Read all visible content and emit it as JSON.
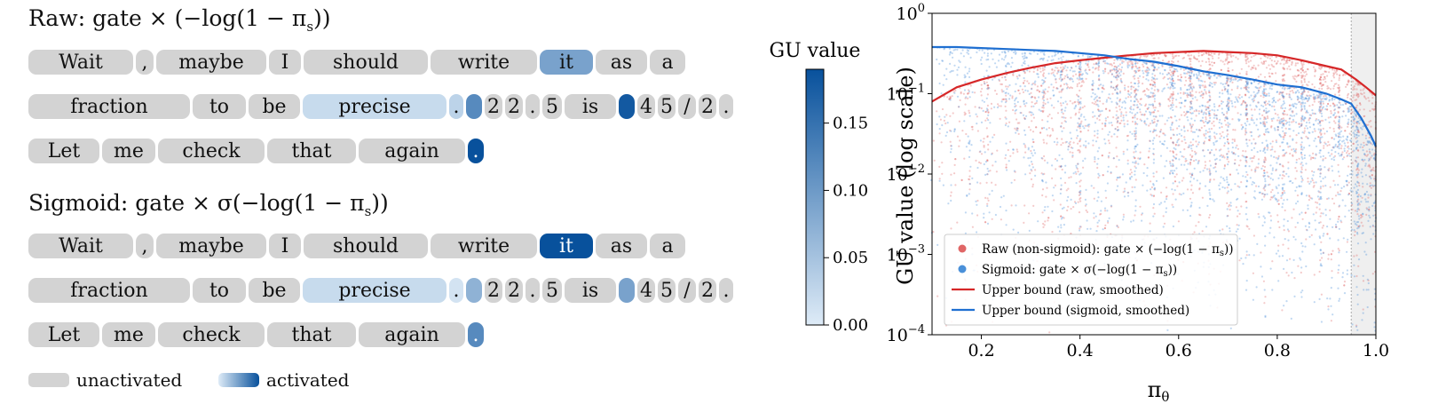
{
  "panels": [
    {
      "title": "Raw:  gate × (−log(1 − π",
      "title_sub": "s",
      "title_end": "))",
      "rows": [
        [
          {
            "t": "Wait",
            "w": 118,
            "v": null
          },
          {
            "t": ",",
            "w": 20,
            "v": null
          },
          {
            "t": "maybe",
            "w": 124,
            "v": null
          },
          {
            "t": "I",
            "w": 36,
            "v": null
          },
          {
            "t": "should",
            "w": 140,
            "v": null
          },
          {
            "t": "write",
            "w": 120,
            "v": null
          },
          {
            "t": "it",
            "w": 60,
            "v": 0.09
          },
          {
            "t": "as",
            "w": 58,
            "v": null
          },
          {
            "t": "a",
            "w": 40,
            "v": null
          }
        ],
        [
          {
            "t": "fraction",
            "w": 182,
            "v": null
          },
          {
            "t": "to",
            "w": 60,
            "v": null
          },
          {
            "t": "be",
            "w": 58,
            "v": null
          },
          {
            "t": "precise",
            "w": 162,
            "v": 0.02
          },
          {
            "t": ".",
            "w": 16,
            "v": 0.03
          },
          {
            "t": "",
            "w": 18,
            "v": 0.12
          },
          {
            "t": "2",
            "w": 20,
            "v": null
          },
          {
            "t": "2",
            "w": 20,
            "v": null
          },
          {
            "t": ".",
            "w": 16,
            "v": null
          },
          {
            "t": "5",
            "w": 22,
            "v": null
          },
          {
            "t": "is",
            "w": 58,
            "v": null
          },
          {
            "t": "",
            "w": 18,
            "v": 0.18
          },
          {
            "t": "4",
            "w": 20,
            "v": null
          },
          {
            "t": "5",
            "w": 20,
            "v": null
          },
          {
            "t": "/",
            "w": 20,
            "v": null
          },
          {
            "t": "2",
            "w": 20,
            "v": null
          },
          {
            "t": ".",
            "w": 16,
            "v": null
          }
        ],
        [
          {
            "t": "Let",
            "w": 80,
            "v": null
          },
          {
            "t": "me",
            "w": 60,
            "v": null
          },
          {
            "t": "check",
            "w": 120,
            "v": null
          },
          {
            "t": "that",
            "w": 100,
            "v": null
          },
          {
            "t": "again",
            "w": 120,
            "v": null
          },
          {
            "t": ".",
            "w": 18,
            "v": 0.19
          }
        ]
      ]
    },
    {
      "title": "Sigmoid:  gate × σ(−log(1 − π",
      "title_sub": "s",
      "title_end": "))",
      "rows": [
        [
          {
            "t": "Wait",
            "w": 118,
            "v": null
          },
          {
            "t": ",",
            "w": 20,
            "v": null
          },
          {
            "t": "maybe",
            "w": 124,
            "v": null
          },
          {
            "t": "I",
            "w": 36,
            "v": null
          },
          {
            "t": "should",
            "w": 140,
            "v": null
          },
          {
            "t": "write",
            "w": 120,
            "v": null
          },
          {
            "t": "it",
            "w": 60,
            "v": 0.19
          },
          {
            "t": "as",
            "w": 58,
            "v": null
          },
          {
            "t": "a",
            "w": 40,
            "v": null
          }
        ],
        [
          {
            "t": "fraction",
            "w": 182,
            "v": null
          },
          {
            "t": "to",
            "w": 60,
            "v": null
          },
          {
            "t": "be",
            "w": 58,
            "v": null
          },
          {
            "t": "precise",
            "w": 162,
            "v": 0.02
          },
          {
            "t": ".",
            "w": 16,
            "v": 0.01
          },
          {
            "t": "",
            "w": 18,
            "v": 0.07
          },
          {
            "t": "2",
            "w": 20,
            "v": null
          },
          {
            "t": "2",
            "w": 20,
            "v": null
          },
          {
            "t": ".",
            "w": 16,
            "v": null
          },
          {
            "t": "5",
            "w": 22,
            "v": null
          },
          {
            "t": "is",
            "w": 58,
            "v": null
          },
          {
            "t": "",
            "w": 18,
            "v": 0.09
          },
          {
            "t": "4",
            "w": 20,
            "v": null
          },
          {
            "t": "5",
            "w": 20,
            "v": null
          },
          {
            "t": "/",
            "w": 20,
            "v": null
          },
          {
            "t": "2",
            "w": 20,
            "v": null
          },
          {
            "t": ".",
            "w": 16,
            "v": null
          }
        ],
        [
          {
            "t": "Let",
            "w": 80,
            "v": null
          },
          {
            "t": "me",
            "w": 60,
            "v": null
          },
          {
            "t": "check",
            "w": 120,
            "v": null
          },
          {
            "t": "that",
            "w": 100,
            "v": null
          },
          {
            "t": "again",
            "w": 120,
            "v": null
          },
          {
            "t": ".",
            "w": 18,
            "v": 0.12
          }
        ]
      ]
    }
  ],
  "legend": {
    "unactivated": "unactivated",
    "activated": "activated"
  },
  "colorbar": {
    "title": "GU value",
    "min": 0,
    "max": 0.19,
    "ticks": [
      0.0,
      0.05,
      0.1,
      0.15
    ],
    "tick_labels": [
      "0.00",
      "0.05",
      "0.10",
      "0.15"
    ],
    "color_low": "#deebf7",
    "color_high": "#08519c"
  },
  "colors": {
    "unactivated": "#d3d3d3",
    "raw": "#d62728",
    "sigmoid": "#1f6fd1",
    "raw_points": "#e06666",
    "sigmoid_points": "#4a90d9"
  },
  "chart_data": {
    "type": "scatter",
    "xlabel": "π",
    "xlabel_sub": "θ",
    "ylabel": "GU value (log scale)",
    "xlim": [
      0.1,
      1.0
    ],
    "ylim": [
      0.0001,
      1
    ],
    "yscale": "log",
    "xticks": [
      0.2,
      0.4,
      0.6,
      0.8,
      1.0
    ],
    "xtick_labels": [
      "0.2",
      "0.4",
      "0.6",
      "0.8",
      "1.0"
    ],
    "yticks": [
      0.0001,
      0.001,
      0.01,
      0.1,
      1
    ],
    "ytick_bases": [
      "10",
      "10",
      "10",
      "10",
      "10"
    ],
    "ytick_exps": [
      "−4",
      "−3",
      "−2",
      "−1",
      "0"
    ],
    "shaded_region": [
      0.95,
      1.0
    ],
    "legend_position": "lower-center",
    "series": [
      {
        "name": "Raw (non-sigmoid): gate × (−log(1 − π",
        "name_sub": "s",
        "name_end": "))",
        "kind": "points"
      },
      {
        "name": "Sigmoid: gate × σ(−log(1 − π",
        "name_sub": "s",
        "name_end": "))",
        "kind": "points"
      },
      {
        "name": "Upper bound (raw, smoothed)",
        "kind": "line",
        "x": [
          0.1,
          0.15,
          0.2,
          0.25,
          0.3,
          0.35,
          0.4,
          0.45,
          0.5,
          0.55,
          0.6,
          0.65,
          0.7,
          0.75,
          0.8,
          0.85,
          0.9,
          0.93,
          0.96,
          0.98,
          1.0
        ],
        "y": [
          0.08,
          0.12,
          0.15,
          0.18,
          0.21,
          0.24,
          0.26,
          0.28,
          0.3,
          0.32,
          0.33,
          0.34,
          0.33,
          0.32,
          0.3,
          0.26,
          0.22,
          0.2,
          0.15,
          0.12,
          0.095
        ]
      },
      {
        "name": "Upper bound (sigmoid, smoothed)",
        "kind": "line",
        "x": [
          0.1,
          0.15,
          0.2,
          0.25,
          0.3,
          0.35,
          0.4,
          0.45,
          0.5,
          0.55,
          0.6,
          0.65,
          0.7,
          0.75,
          0.8,
          0.85,
          0.9,
          0.93,
          0.95,
          0.97,
          0.99,
          1.0
        ],
        "y": [
          0.38,
          0.38,
          0.37,
          0.36,
          0.35,
          0.34,
          0.32,
          0.3,
          0.27,
          0.25,
          0.22,
          0.19,
          0.17,
          0.15,
          0.13,
          0.12,
          0.1,
          0.085,
          0.075,
          0.05,
          0.03,
          0.022
        ]
      }
    ]
  }
}
